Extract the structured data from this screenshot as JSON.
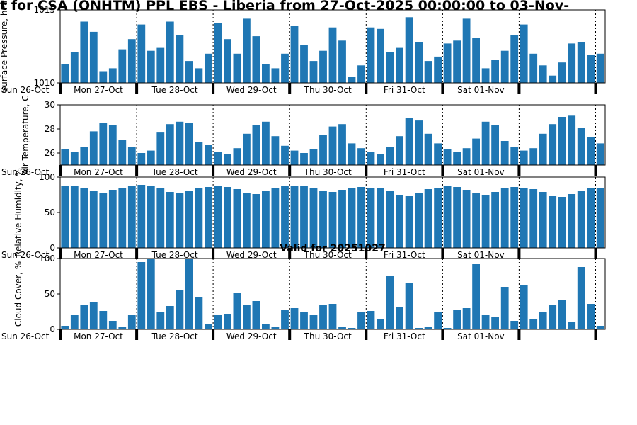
{
  "title": "t for CSA (ONHTM) PPL EBS  - Liberia from 27-Oct-2025 00:00:00 to 03-Nov-",
  "annotation": "Valid for 20251027",
  "bar_color": "#1f77b4",
  "x_axis": {
    "origin_label": "Sun 26-Oct",
    "day_labels": [
      "Mon 27-Oct",
      "Tue 28-Oct",
      "Wed 29-Oct",
      "Thu 30-Oct",
      "Fri 31-Oct",
      "Sat 01-Nov"
    ],
    "bars_per_day": 8
  },
  "chart_data": [
    {
      "type": "bar",
      "title": "",
      "xlabel": "",
      "ylabel": "Surface Pressure, hPa",
      "ylim": [
        1010,
        1015
      ],
      "yticks": [
        1010,
        1015
      ],
      "grid": false,
      "values": [
        1011.3,
        1012.1,
        1014.2,
        1013.5,
        1010.8,
        1011.0,
        1012.3,
        1013.0,
        1014.0,
        1012.2,
        1012.4,
        1014.2,
        1013.3,
        1011.5,
        1011.0,
        1012.0,
        1014.1,
        1013.0,
        1012.0,
        1014.4,
        1013.2,
        1011.3,
        1011.0,
        1012.0,
        1013.9,
        1012.6,
        1011.5,
        1012.2,
        1013.8,
        1012.9,
        1010.4,
        1011.2,
        1013.8,
        1013.7,
        1012.1,
        1012.4,
        1014.5,
        1012.8,
        1011.5,
        1011.8,
        1012.7,
        1012.9,
        1014.4,
        1013.1,
        1011.0,
        1011.6,
        1012.2,
        1013.3,
        1014.0,
        1012.0,
        1011.2,
        1010.5,
        1011.4,
        1012.7,
        1012.8,
        1011.9,
        1012.0
      ]
    },
    {
      "type": "bar",
      "title": "",
      "xlabel": "",
      "ylabel": "Air Temperature, C",
      "ylim": [
        25,
        30
      ],
      "yticks": [
        26,
        28,
        30
      ],
      "grid": false,
      "values": [
        26.3,
        26.1,
        26.5,
        27.8,
        28.5,
        28.3,
        27.1,
        26.5,
        26.0,
        26.2,
        27.7,
        28.4,
        28.6,
        28.5,
        26.9,
        26.7,
        26.1,
        25.9,
        26.4,
        27.6,
        28.3,
        28.6,
        27.4,
        26.6,
        26.2,
        26.0,
        26.3,
        27.5,
        28.2,
        28.4,
        26.8,
        26.4,
        26.1,
        25.9,
        26.5,
        27.4,
        28.9,
        28.7,
        27.6,
        26.8,
        26.3,
        26.1,
        26.4,
        27.2,
        28.6,
        28.3,
        27.0,
        26.5,
        26.2,
        26.4,
        27.6,
        28.4,
        29.0,
        29.1,
        28.1,
        27.3,
        26.8
      ]
    },
    {
      "type": "bar",
      "title": "",
      "xlabel": "",
      "ylabel": "Relative Humidity, %",
      "ylim": [
        0,
        100
      ],
      "yticks": [
        0,
        50,
        100
      ],
      "grid": false,
      "values": [
        88,
        87,
        85,
        80,
        78,
        82,
        85,
        87,
        89,
        88,
        84,
        79,
        77,
        80,
        84,
        86,
        87,
        86,
        83,
        78,
        76,
        80,
        85,
        87,
        88,
        87,
        84,
        80,
        79,
        82,
        85,
        86,
        85,
        84,
        80,
        75,
        73,
        78,
        83,
        85,
        87,
        86,
        82,
        77,
        75,
        79,
        84,
        86,
        85,
        83,
        79,
        74,
        72,
        76,
        81,
        84,
        85
      ]
    },
    {
      "type": "bar",
      "title": "",
      "xlabel": "",
      "ylabel": "Cloud Cover, %",
      "ylim": [
        0,
        100
      ],
      "yticks": [
        0,
        50,
        100
      ],
      "grid": false,
      "values": [
        5,
        20,
        35,
        38,
        26,
        12,
        3,
        20,
        95,
        100,
        25,
        33,
        55,
        100,
        46,
        8,
        20,
        22,
        52,
        35,
        40,
        8,
        3,
        28,
        30,
        25,
        20,
        35,
        36,
        3,
        2,
        25,
        26,
        15,
        75,
        32,
        65,
        2,
        3,
        25,
        2,
        28,
        30,
        92,
        20,
        18,
        60,
        12,
        62,
        14,
        25,
        35,
        42,
        10,
        88,
        36,
        5
      ]
    }
  ]
}
